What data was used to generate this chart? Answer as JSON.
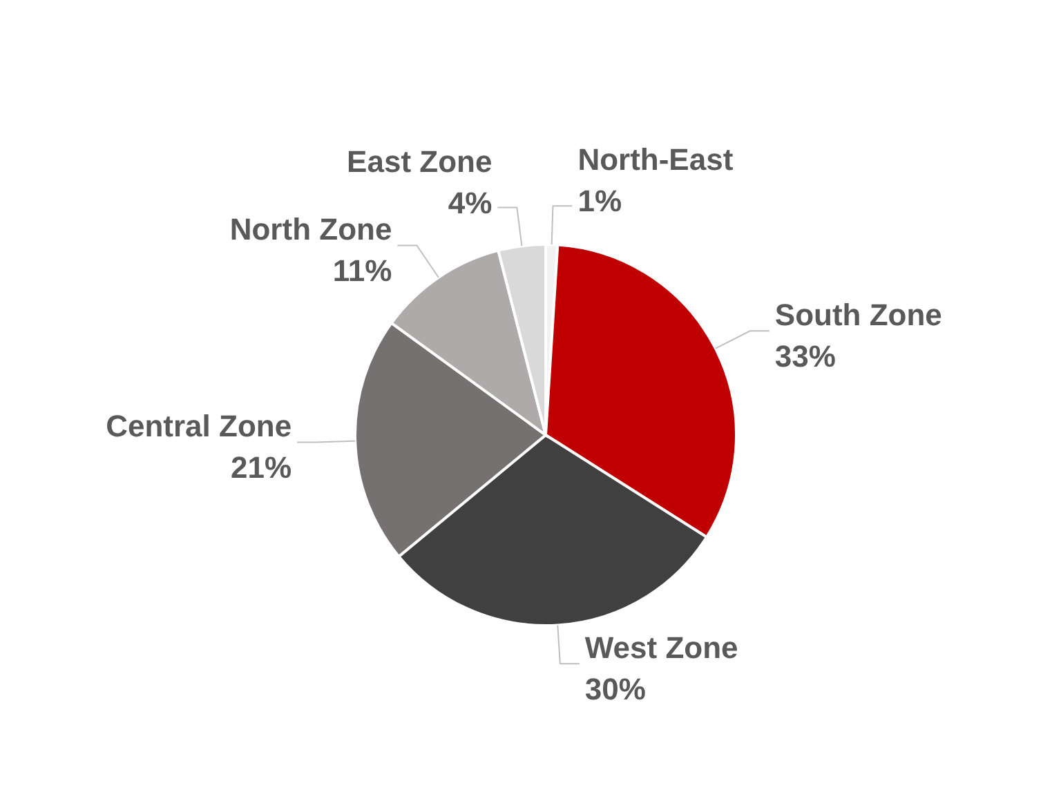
{
  "chart_data": {
    "type": "pie",
    "categories": [
      "North-East",
      "South Zone",
      "West Zone",
      "Central Zone",
      "North Zone",
      "East Zone"
    ],
    "values": [
      1,
      33,
      30,
      21,
      11,
      4
    ],
    "value_labels": [
      "1%",
      "33%",
      "30%",
      "21%",
      "11%",
      "4%"
    ],
    "colors": [
      "#f2f2f2",
      "#c00000",
      "#404040",
      "#767171",
      "#aeaaaa",
      "#d9d9d9"
    ]
  }
}
